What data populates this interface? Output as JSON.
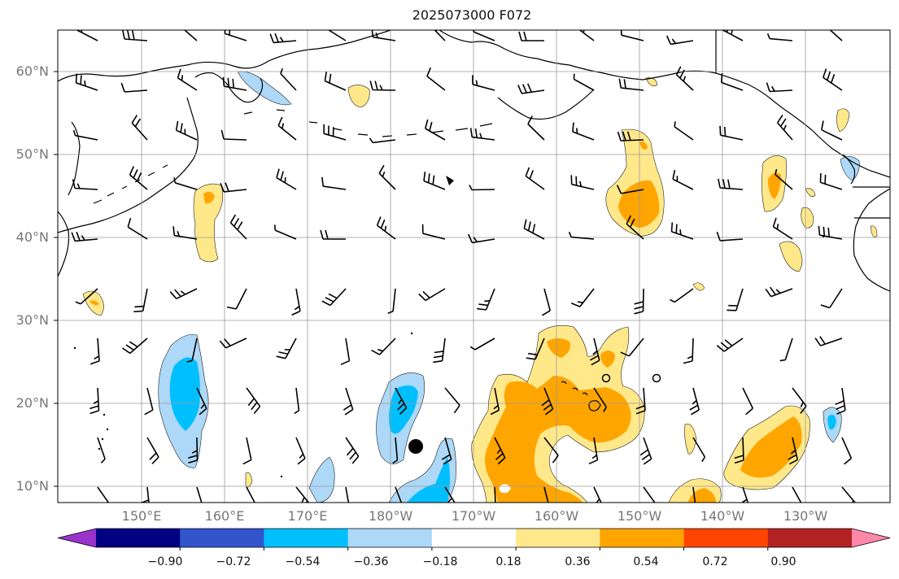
{
  "title": "2025073000 F072",
  "map": {
    "lat_labels": [
      "60°N",
      "50°N",
      "40°N",
      "30°N",
      "20°N",
      "10°N"
    ],
    "lon_labels": [
      "150°E",
      "160°E",
      "170°E",
      "180°W",
      "170°W",
      "160°W",
      "150°W",
      "140°W",
      "130°W"
    ],
    "background_color": "#ffffff",
    "land_outline_color": "#000000",
    "gridline_color": "#9a9a9a"
  },
  "colorbar": {
    "tick_labels": [
      "−0.90",
      "−0.72",
      "−0.54",
      "−0.36",
      "−0.18",
      "0.18",
      "0.36",
      "0.54",
      "0.72",
      "0.90"
    ],
    "colors": [
      "#9933cc",
      "#000080",
      "#3355cc",
      "#00bfff",
      "#add8f7",
      "#ffffff",
      "#ffe88a",
      "#ffa500",
      "#ff4500",
      "#b22222",
      "#ff88aa"
    ]
  },
  "icons": {
    "wind_barbs": "wind-barb-icon",
    "storm_marker": "filled-circle-icon",
    "pressure_centers": "open-circle-icon"
  }
}
